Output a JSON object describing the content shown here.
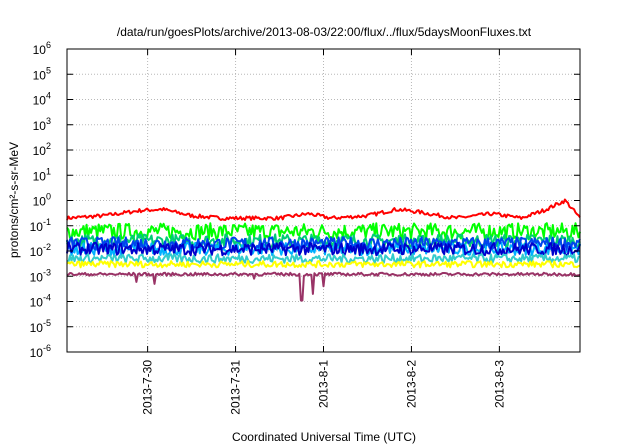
{
  "chart_data": {
    "type": "line",
    "title": "/data/run/goesPlots/archive/2013-08-03/22:00/flux/../flux/5daysMoonFluxes.txt",
    "xlabel": "Coordinated Universal Time (UTC)",
    "ylabel": "protons/cm²-s-sr-MeV",
    "y_scale": "log",
    "ylim": [
      1e-06,
      1000000.0
    ],
    "y_ticks": [
      {
        "base": "10",
        "exp": "-6",
        "value": 1e-06
      },
      {
        "base": "10",
        "exp": "-5",
        "value": 1e-05
      },
      {
        "base": "10",
        "exp": "-4",
        "value": 0.0001
      },
      {
        "base": "10",
        "exp": "-3",
        "value": 0.001
      },
      {
        "base": "10",
        "exp": "-2",
        "value": 0.01
      },
      {
        "base": "10",
        "exp": "-1",
        "value": 0.1
      },
      {
        "base": "10",
        "exp": "0",
        "value": 1
      },
      {
        "base": "10",
        "exp": "1",
        "value": 10
      },
      {
        "base": "10",
        "exp": "2",
        "value": 100
      },
      {
        "base": "10",
        "exp": "3",
        "value": 1000
      },
      {
        "base": "10",
        "exp": "4",
        "value": 10000
      },
      {
        "base": "10",
        "exp": "5",
        "value": 100000
      },
      {
        "base": "10",
        "exp": "6",
        "value": 1000000
      }
    ],
    "x_tick_labels": [
      "2013-7-30",
      "2013-7-31",
      "2013-8-1",
      "2013-8-2",
      "2013-8-3"
    ],
    "xlim": [
      "2013-07-29T02:00",
      "2013-08-03T22:00"
    ],
    "x_tick_values": [
      "2013-07-30T00:00",
      "2013-07-31T00:00",
      "2013-08-01T00:00",
      "2013-08-02T00:00",
      "2013-08-03T00:00"
    ],
    "grid": true,
    "series": [
      {
        "color": "#ff0000",
        "level": 0.25,
        "noise": 0.15,
        "drops": [],
        "points": [
          [
            "2013-07-29T02:00",
            0.2
          ],
          [
            "2013-07-29T12:00",
            0.25
          ],
          [
            "2013-07-29T22:00",
            0.4
          ],
          [
            "2013-07-30T04:00",
            0.45
          ],
          [
            "2013-07-30T12:00",
            0.25
          ],
          [
            "2013-07-30T20:00",
            0.2
          ],
          [
            "2013-07-31T00:00",
            0.2
          ],
          [
            "2013-07-31T12:00",
            0.2
          ],
          [
            "2013-07-31T20:00",
            0.3
          ],
          [
            "2013-08-01T02:00",
            0.2
          ],
          [
            "2013-08-01T12:00",
            0.25
          ],
          [
            "2013-08-01T20:00",
            0.45
          ],
          [
            "2013-08-02T02:00",
            0.35
          ],
          [
            "2013-08-02T12:00",
            0.2
          ],
          [
            "2013-08-02T22:00",
            0.3
          ],
          [
            "2013-08-03T06:00",
            0.2
          ],
          [
            "2013-08-03T12:00",
            0.4
          ],
          [
            "2013-08-03T18:00",
            1.0
          ],
          [
            "2013-08-03T22:00",
            0.2
          ]
        ]
      },
      {
        "color": "#00ff00",
        "level": 0.06,
        "noise": 0.65,
        "drops": []
      },
      {
        "color": "#00cc77",
        "level": 0.025,
        "noise": 0.55,
        "drops": []
      },
      {
        "color": "#00b0ff",
        "level": 0.012,
        "noise": 0.5,
        "drops": []
      },
      {
        "color": "#0044ee",
        "level": 0.02,
        "noise": 0.5,
        "drops": []
      },
      {
        "color": "#0000cc",
        "level": 0.012,
        "noise": 0.5,
        "drops": []
      },
      {
        "color": "#33cccc",
        "level": 0.005,
        "noise": 0.35,
        "drops": []
      },
      {
        "color": "#ffff00",
        "level": 0.003,
        "noise": 0.25,
        "drops": []
      },
      {
        "color": "#993366",
        "level": 0.0012,
        "noise": 0.12,
        "drops": [
          [
            "2013-07-29T21:00",
            0.0006
          ],
          [
            "2013-07-30T02:00",
            0.0005
          ],
          [
            "2013-07-31T05:00",
            0.0008
          ],
          [
            "2013-07-31T18:00",
            0.00011
          ],
          [
            "2013-07-31T21:00",
            0.0002
          ],
          [
            "2013-08-01T00:00",
            0.0004
          ]
        ]
      }
    ]
  }
}
